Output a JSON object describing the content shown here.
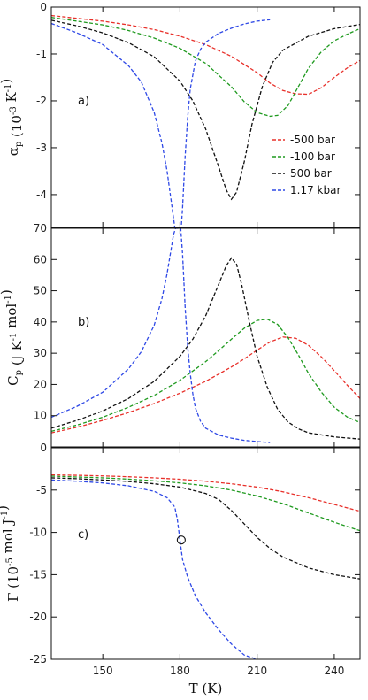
{
  "chart_data": [
    {
      "panel": "a)",
      "type": "line",
      "ylabel": "α_p (10^-3 K^-1)",
      "ylim": [
        -4.7,
        0
      ],
      "xlim": [
        130,
        250
      ],
      "yticks": [
        0,
        -1,
        -2,
        -3,
        -4
      ],
      "series": [
        {
          "name": "-500 bar",
          "color": "#e8302a",
          "x": [
            130,
            140,
            150,
            160,
            170,
            180,
            190,
            200,
            210,
            215,
            220,
            225,
            230,
            235,
            240,
            245,
            250
          ],
          "y": [
            -0.18,
            -0.24,
            -0.3,
            -0.38,
            -0.48,
            -0.62,
            -0.8,
            -1.05,
            -1.4,
            -1.62,
            -1.78,
            -1.85,
            -1.86,
            -1.72,
            -1.5,
            -1.3,
            -1.14
          ]
        },
        {
          "name": "-100 bar",
          "color": "#1f9a1f",
          "x": [
            130,
            140,
            150,
            160,
            170,
            180,
            190,
            200,
            205,
            210,
            215,
            218,
            222,
            226,
            230,
            235,
            240,
            245,
            250
          ],
          "y": [
            -0.22,
            -0.3,
            -0.38,
            -0.5,
            -0.66,
            -0.88,
            -1.2,
            -1.7,
            -2.02,
            -2.25,
            -2.33,
            -2.31,
            -2.1,
            -1.7,
            -1.3,
            -0.95,
            -0.72,
            -0.58,
            -0.46
          ]
        },
        {
          "name": "500 bar",
          "color": "#111111",
          "x": [
            130,
            140,
            150,
            160,
            170,
            180,
            185,
            190,
            195,
            198,
            200,
            202,
            205,
            208,
            212,
            216,
            220,
            230,
            240,
            250
          ],
          "y": [
            -0.28,
            -0.4,
            -0.55,
            -0.76,
            -1.06,
            -1.58,
            -2.0,
            -2.6,
            -3.4,
            -3.9,
            -4.1,
            -3.95,
            -3.3,
            -2.5,
            -1.7,
            -1.18,
            -0.92,
            -0.62,
            -0.46,
            -0.37
          ]
        },
        {
          "name": "1.17 kbar",
          "color": "#2f49e6",
          "x": [
            130,
            140,
            150,
            160,
            165,
            170,
            173,
            175,
            177,
            178,
            178.5,
            180.5,
            181,
            182,
            183,
            184,
            186,
            188,
            190,
            195,
            200,
            205,
            210,
            215
          ],
          "y": [
            -0.35,
            -0.55,
            -0.8,
            -1.25,
            -1.6,
            -2.25,
            -2.9,
            -3.5,
            -4.3,
            -4.7,
            -4.7,
            -4.7,
            -4.3,
            -3.2,
            -2.35,
            -1.75,
            -1.15,
            -0.9,
            -0.75,
            -0.56,
            -0.45,
            -0.36,
            -0.3,
            -0.27
          ]
        }
      ],
      "legend_position": "right"
    },
    {
      "panel": "b)",
      "type": "line",
      "ylabel": "C_p (J K^-1 mol^-1)",
      "ylim": [
        0,
        70
      ],
      "xlim": [
        130,
        250
      ],
      "yticks": [
        10,
        20,
        30,
        40,
        50,
        60,
        70
      ],
      "series": [
        {
          "name": "-500 bar",
          "color": "#e8302a",
          "x": [
            130,
            140,
            150,
            160,
            170,
            180,
            190,
            200,
            205,
            210,
            215,
            220,
            225,
            230,
            235,
            240,
            245,
            250
          ],
          "y": [
            4.5,
            6.3,
            8.5,
            11.0,
            13.9,
            17.2,
            21.0,
            25.6,
            28.2,
            31.0,
            33.6,
            35.2,
            34.8,
            32.5,
            28.8,
            24.4,
            19.8,
            15.5
          ]
        },
        {
          "name": "-100 bar",
          "color": "#1f9a1f",
          "x": [
            130,
            140,
            150,
            160,
            170,
            180,
            190,
            195,
            200,
            205,
            210,
            214,
            218,
            222,
            226,
            230,
            235,
            240,
            245,
            250
          ],
          "y": [
            5.0,
            7.0,
            9.5,
            12.7,
            16.5,
            21.3,
            27.3,
            30.8,
            34.5,
            38.0,
            40.5,
            40.9,
            39.2,
            35.0,
            29.5,
            23.5,
            17.5,
            12.7,
            9.6,
            7.8
          ]
        },
        {
          "name": "500 bar",
          "color": "#111111",
          "x": [
            130,
            140,
            150,
            160,
            170,
            180,
            185,
            190,
            195,
            198,
            200,
            202,
            204,
            207,
            210,
            214,
            218,
            222,
            226,
            230,
            240,
            250
          ],
          "y": [
            6.0,
            8.5,
            11.5,
            15.5,
            21.0,
            29.0,
            34.5,
            42.0,
            52.0,
            58.0,
            60.5,
            58.5,
            52.0,
            40.0,
            29.0,
            19.0,
            12.0,
            8.0,
            5.8,
            4.5,
            3.2,
            2.5
          ]
        },
        {
          "name": "1.17 kbar",
          "color": "#2f49e6",
          "x": [
            130,
            140,
            150,
            160,
            165,
            170,
            173,
            175,
            176.5,
            177.5,
            178.3,
            180.3,
            181,
            182,
            183,
            184,
            185,
            186,
            188,
            190,
            195,
            200,
            205,
            210,
            215
          ],
          "y": [
            9.5,
            13.0,
            17.5,
            25.0,
            30.5,
            39.0,
            47.5,
            55.5,
            63.0,
            68.0,
            70.0,
            70.0,
            62.0,
            45.0,
            32.0,
            23.5,
            17.0,
            12.5,
            8.2,
            6.0,
            3.8,
            2.8,
            2.1,
            1.7,
            1.4
          ]
        }
      ]
    },
    {
      "panel": "c)",
      "type": "line",
      "xlabel": "T (K)",
      "ylabel": "Γ (10^-5 mol J^-1)",
      "ylim": [
        -25,
        0
      ],
      "xlim": [
        130,
        250
      ],
      "xticks": [
        150,
        180,
        210,
        240
      ],
      "yticks": [
        0,
        -5,
        -10,
        -15,
        -20,
        -25
      ],
      "series": [
        {
          "name": "-500 bar",
          "color": "#e8302a",
          "x": [
            130,
            140,
            150,
            160,
            170,
            180,
            190,
            200,
            210,
            220,
            230,
            240,
            250
          ],
          "y": [
            -3.2,
            -3.25,
            -3.32,
            -3.42,
            -3.55,
            -3.72,
            -3.95,
            -4.25,
            -4.65,
            -5.2,
            -5.9,
            -6.7,
            -7.5
          ]
        },
        {
          "name": "-100 bar",
          "color": "#1f9a1f",
          "x": [
            130,
            140,
            150,
            160,
            170,
            180,
            190,
            200,
            210,
            220,
            230,
            240,
            250
          ],
          "y": [
            -3.35,
            -3.45,
            -3.55,
            -3.7,
            -3.9,
            -4.15,
            -4.5,
            -5.0,
            -5.7,
            -6.6,
            -7.7,
            -8.8,
            -9.8
          ]
        },
        {
          "name": "500 bar",
          "color": "#111111",
          "x": [
            130,
            140,
            150,
            160,
            170,
            180,
            190,
            195,
            200,
            205,
            210,
            215,
            220,
            230,
            240,
            250
          ],
          "y": [
            -3.55,
            -3.65,
            -3.8,
            -3.98,
            -4.25,
            -4.65,
            -5.4,
            -6.1,
            -7.4,
            -9.0,
            -10.6,
            -11.9,
            -12.9,
            -14.2,
            -15.0,
            -15.5
          ]
        },
        {
          "name": "1.17 kbar",
          "color": "#2f49e6",
          "x": [
            130,
            140,
            150,
            160,
            170,
            175,
            178,
            179,
            180,
            181,
            183,
            186,
            190,
            195,
            200,
            205,
            210
          ],
          "y": [
            -3.8,
            -3.95,
            -4.15,
            -4.5,
            -5.15,
            -5.9,
            -7.0,
            -8.5,
            -10.9,
            -13.2,
            -15.3,
            -17.5,
            -19.5,
            -21.5,
            -23.2,
            -24.5,
            -25.0
          ]
        }
      ],
      "marker": {
        "x": 180.5,
        "y": -10.9,
        "shape": "open-circle"
      }
    }
  ]
}
